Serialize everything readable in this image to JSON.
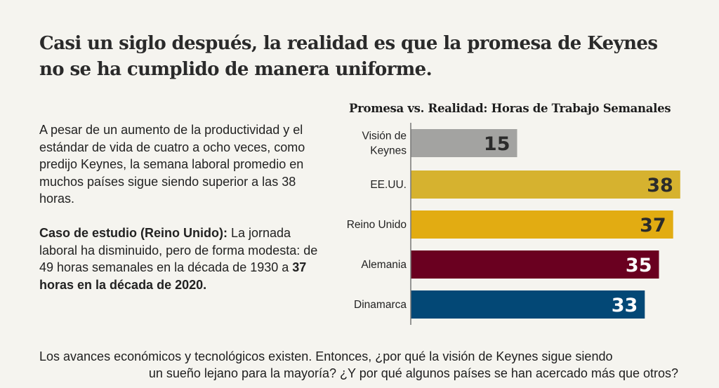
{
  "title": {
    "line1": "Casi un siglo después, la realidad es que la promesa de Keynes",
    "line2": "no se ha cumplido de manera uniforme."
  },
  "body": {
    "paragraph1": "A pesar de un aumento de la productividad y el estándar de vida de cuatro a ocho veces, como predijo Keynes, la semana laboral promedio en muchos países sigue siendo superior a las 38 horas.",
    "case_label": "Caso de estudio (Reino Unido):",
    "case_text": " La jornada laboral ha disminuido, pero de forma modesta: de 49 horas semanales en la década de 1930  a ",
    "case_emphasis": "37 horas en la década de 2020."
  },
  "footer": {
    "line1": "Los avances económicos y tecnológicos existen. Entonces, ¿por qué la visión de Keynes sigue siendo",
    "line2": "un sueño lejano para la mayoría? ¿Y por qué algunos países se han acercado más que otros?"
  },
  "chart_data": {
    "type": "bar",
    "orientation": "horizontal",
    "title": "Promesa vs. Realidad: Horas de Trabajo Semanales",
    "categories": [
      "Visión de Keynes",
      "EE.UU.",
      "Reino Unido",
      "Alemania",
      "Dinamarca"
    ],
    "category_lines": [
      [
        "Visión de",
        "Keynes"
      ],
      [
        "EE.UU."
      ],
      [
        "Reino Unido"
      ],
      [
        "Alemania"
      ],
      [
        "Dinamarca"
      ]
    ],
    "values": [
      15,
      38,
      37,
      35,
      33
    ],
    "data_labels": [
      "15",
      "38",
      "37",
      "35",
      "33"
    ],
    "colors": [
      "#a3a3a1",
      "#d6b22f",
      "#e2ac12",
      "#6a0020",
      "#034876"
    ],
    "label_colors": [
      "#2b2b2b",
      "#2b2b2b",
      "#2b2b2b",
      "#ffffff",
      "#ffffff"
    ],
    "xlabel": "",
    "ylabel": "",
    "xlim": [
      0,
      38
    ],
    "grid": false,
    "legend": "none"
  }
}
